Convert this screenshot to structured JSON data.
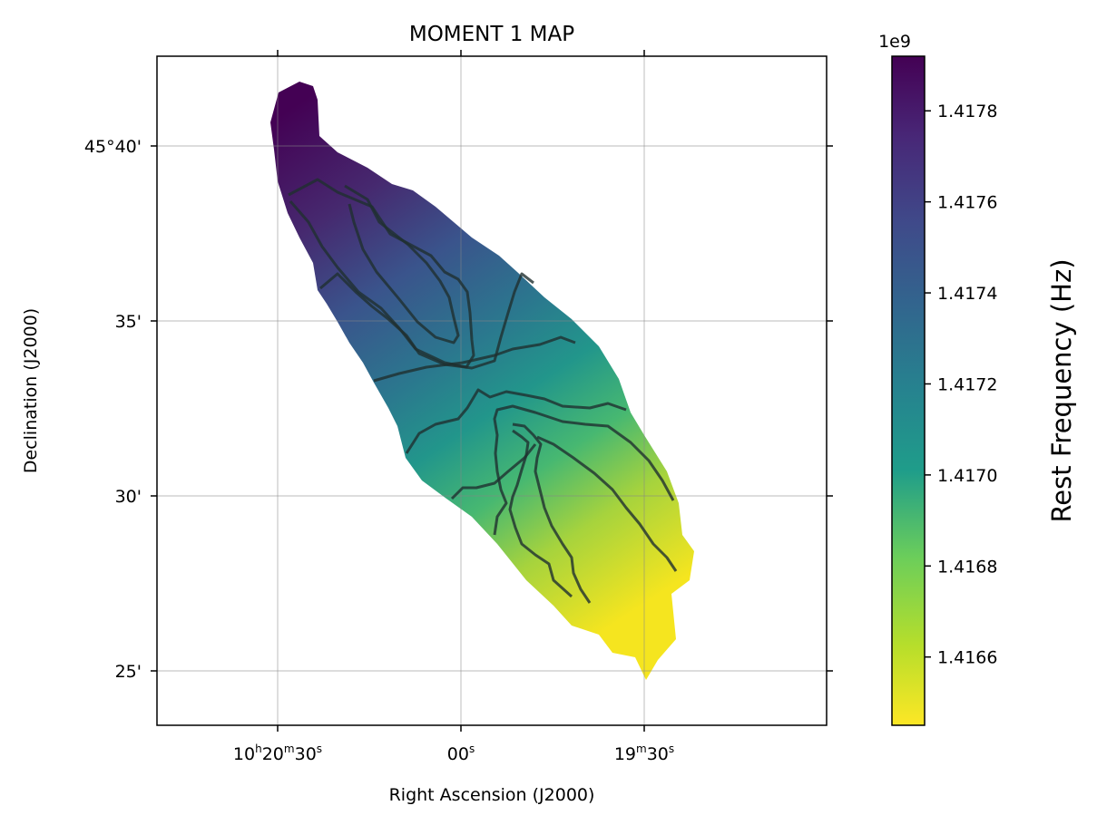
{
  "chart_data": {
    "type": "heatmap",
    "title": "MOMENT 1 MAP",
    "xlabel": "Right Ascension (J2000)",
    "ylabel": "Declination (J2000)",
    "grid": true,
    "x_ticks": [
      {
        "main": "10",
        "sup1": "h",
        "mid": "20",
        "sup2": "m",
        "end": "30",
        "sup3": "s"
      },
      {
        "main": "",
        "sup1": "",
        "mid": "",
        "sup2": "",
        "end": "00",
        "sup3": "s"
      },
      {
        "main": "",
        "sup1": "",
        "mid": "19",
        "sup2": "m",
        "end": "30",
        "sup3": "s"
      }
    ],
    "y_ticks": [
      "45°40'",
      "35'",
      "30'",
      "25'"
    ],
    "colorbar": {
      "label": "Rest Frequency (Hz)",
      "offset_label": "1e9",
      "colormap": "viridis_r",
      "range": [
        1.41645,
        1.41792
      ],
      "ticks": [
        "1.4178",
        "1.4176",
        "1.4174",
        "1.4172",
        "1.4170",
        "1.4168",
        "1.4166"
      ],
      "tick_values": [
        1.4178,
        1.4176,
        1.4174,
        1.4172,
        1.417,
        1.4168,
        1.4166
      ]
    },
    "contour_color": "#1f2f2f"
  }
}
